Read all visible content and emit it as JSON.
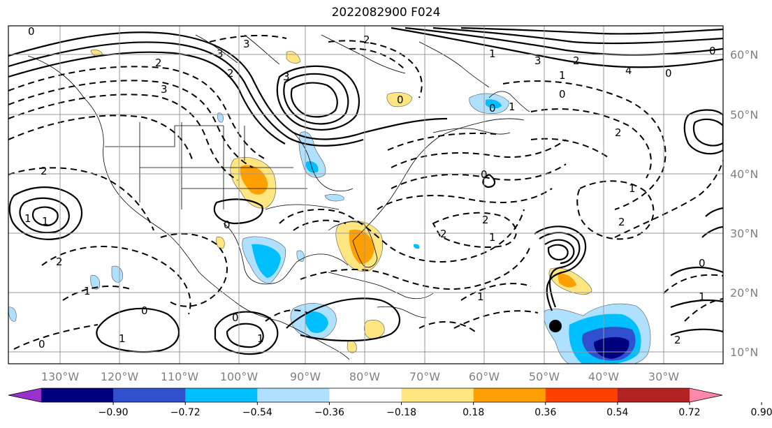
{
  "title": "2022082900 F024",
  "lon_labels": [
    "130°W",
    "120°W",
    "110°W",
    "100°W",
    "90°W",
    "80°W",
    "70°W",
    "60°W",
    "50°W",
    "40°W",
    "30°W"
  ],
  "lat_labels": [
    "60°N",
    "50°N",
    "40°N",
    "30°N",
    "20°N",
    "10°N"
  ],
  "colorbar": {
    "ticks": [
      "−0.90",
      "−0.72",
      "−0.54",
      "−0.36",
      "−0.18",
      "0.18",
      "0.36",
      "0.54",
      "0.72",
      "0.90"
    ],
    "colors": [
      "#9932cc",
      "#00007f",
      "#3050d0",
      "#00bfff",
      "#b0e0ff",
      "#ffffff",
      "#ffe680",
      "#ff9f00",
      "#ff4000",
      "#b22222",
      "#ff88aa"
    ]
  },
  "contour_labels": [
    "0",
    "3",
    "3",
    "2",
    "2",
    "3",
    "2",
    "3",
    "0",
    "1",
    "1",
    "2",
    "3",
    "4",
    "0",
    "0",
    "1",
    "0",
    "0",
    "2",
    "2",
    "2",
    "1",
    "2",
    "1",
    "1",
    "0",
    "0",
    "2",
    "2",
    "1",
    "0",
    "1",
    "0",
    "1",
    "2",
    "1",
    "0",
    "1",
    "1",
    "0"
  ],
  "storm_marker": "filled-circle"
}
